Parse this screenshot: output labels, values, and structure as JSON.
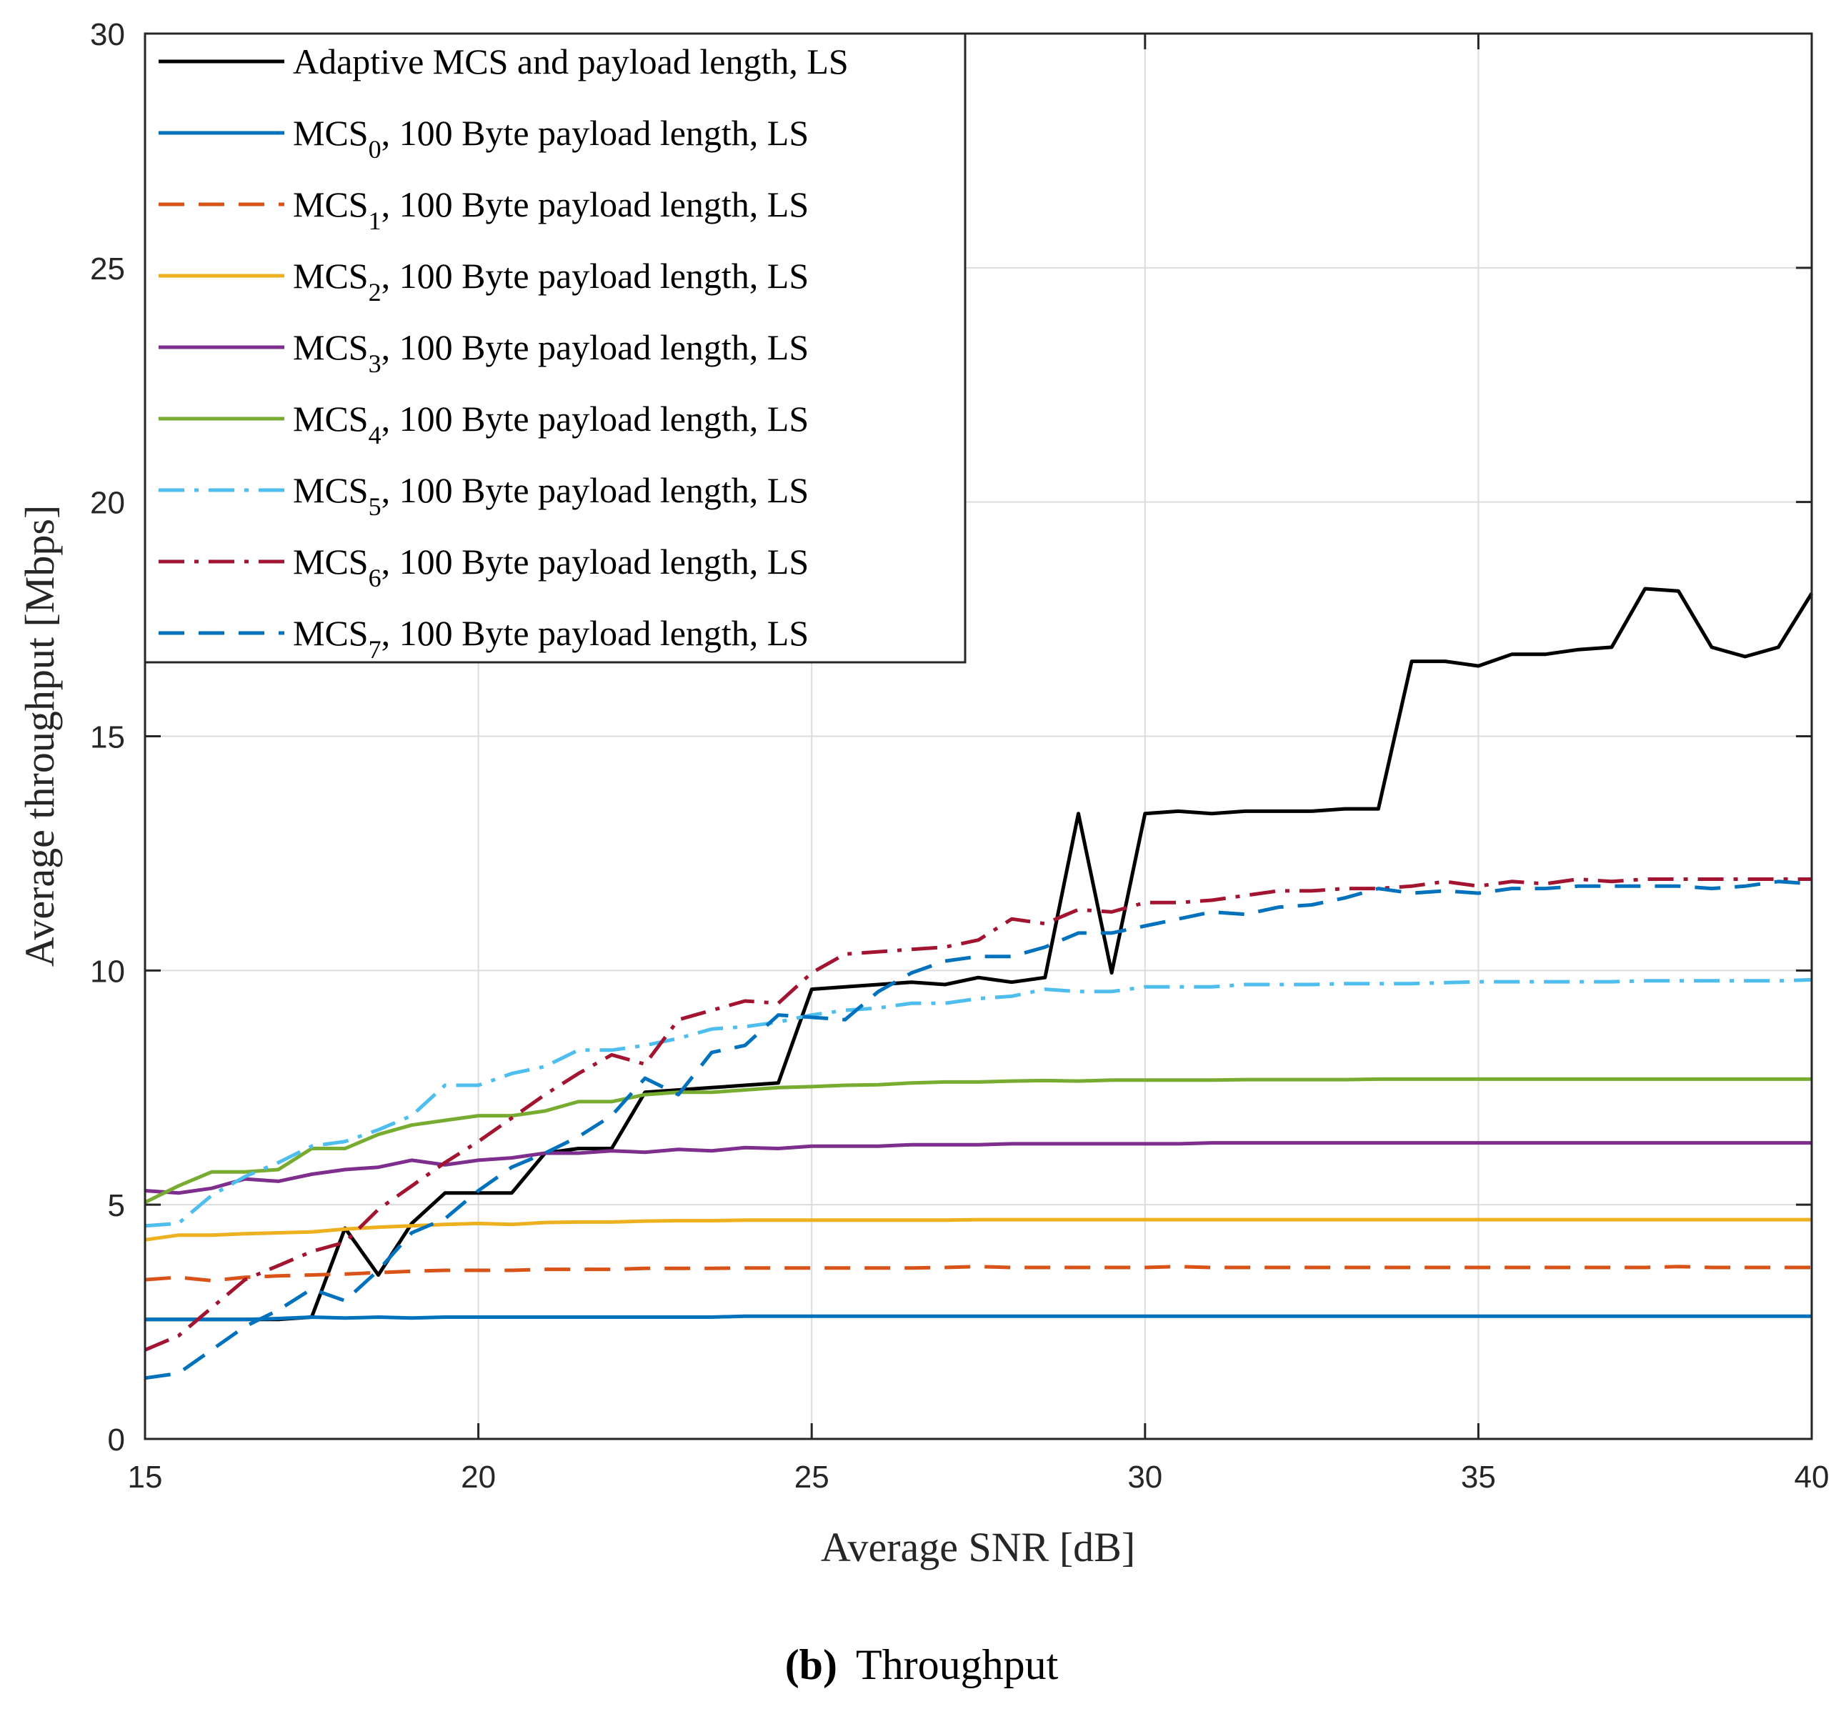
{
  "chart_data": {
    "type": "line",
    "title": "",
    "xlabel": "Average SNR [dB]",
    "ylabel": "Average throughput [Mbps]",
    "xlim": [
      15,
      40
    ],
    "ylim": [
      0,
      30
    ],
    "xticks": [
      15,
      20,
      25,
      30,
      35,
      40
    ],
    "yticks": [
      0,
      5,
      10,
      15,
      20,
      25,
      30
    ],
    "grid": true,
    "legend_position": "top-left",
    "caption": {
      "label": "(b)",
      "text": "Throughput"
    },
    "x": [
      15,
      15.5,
      16,
      16.5,
      17,
      17.5,
      18,
      18.5,
      19,
      19.5,
      20,
      20.5,
      21,
      21.5,
      22,
      22.5,
      23,
      23.5,
      24,
      24.5,
      25,
      25.5,
      26,
      26.5,
      27,
      27.5,
      28,
      28.5,
      29,
      29.5,
      30,
      30.5,
      31,
      31.5,
      32,
      32.5,
      33,
      33.5,
      34,
      34.5,
      35,
      35.5,
      36,
      36.5,
      37,
      37.5,
      38,
      38.5,
      39,
      39.5,
      40
    ],
    "series": [
      {
        "name": "Adaptive MCS and payload length, LS",
        "legend_main": "Adaptive MCS and payload length, LS",
        "legend_sub": "",
        "legend_rest": "",
        "color": "#000000",
        "dash": "solid",
        "values": [
          2.55,
          2.55,
          2.55,
          2.55,
          2.55,
          2.6,
          4.5,
          3.5,
          4.6,
          5.25,
          5.25,
          5.25,
          6.1,
          6.2,
          6.2,
          7.4,
          7.45,
          7.5,
          7.55,
          7.6,
          9.6,
          9.65,
          9.7,
          9.75,
          9.7,
          9.85,
          9.75,
          9.85,
          13.35,
          9.95,
          13.35,
          13.4,
          13.35,
          13.4,
          13.4,
          13.4,
          13.45,
          13.45,
          16.6,
          16.6,
          16.5,
          16.75,
          16.75,
          16.85,
          16.9,
          18.15,
          18.1,
          16.9,
          16.7,
          16.9,
          18.05
        ]
      },
      {
        "name": "MCS0, 100 Byte payload length, LS",
        "legend_main": "MCS",
        "legend_sub": "0",
        "legend_rest": ", 100 Byte payload length, LS",
        "color": "#0072BD",
        "dash": "solid",
        "values": [
          2.55,
          2.55,
          2.55,
          2.55,
          2.57,
          2.6,
          2.58,
          2.6,
          2.58,
          2.6,
          2.6,
          2.6,
          2.6,
          2.6,
          2.6,
          2.6,
          2.6,
          2.6,
          2.62,
          2.62,
          2.62,
          2.62,
          2.62,
          2.62,
          2.62,
          2.62,
          2.62,
          2.62,
          2.62,
          2.62,
          2.62,
          2.62,
          2.62,
          2.62,
          2.62,
          2.62,
          2.62,
          2.62,
          2.62,
          2.62,
          2.62,
          2.62,
          2.62,
          2.62,
          2.62,
          2.62,
          2.62,
          2.62,
          2.62,
          2.62,
          2.62
        ]
      },
      {
        "name": "MCS1, 100 Byte payload length, LS",
        "legend_main": "MCS",
        "legend_sub": "1",
        "legend_rest": ", 100 Byte payload length, LS",
        "color": "#D95319",
        "dash": "dashed",
        "values": [
          3.4,
          3.45,
          3.38,
          3.45,
          3.48,
          3.5,
          3.52,
          3.55,
          3.58,
          3.6,
          3.6,
          3.6,
          3.62,
          3.62,
          3.62,
          3.64,
          3.64,
          3.64,
          3.65,
          3.65,
          3.65,
          3.65,
          3.65,
          3.65,
          3.66,
          3.68,
          3.66,
          3.66,
          3.66,
          3.66,
          3.66,
          3.68,
          3.66,
          3.66,
          3.66,
          3.66,
          3.66,
          3.66,
          3.66,
          3.66,
          3.66,
          3.66,
          3.66,
          3.66,
          3.66,
          3.66,
          3.68,
          3.66,
          3.66,
          3.66,
          3.66
        ]
      },
      {
        "name": "MCS2, 100 Byte payload length, LS",
        "legend_main": "MCS",
        "legend_sub": "2",
        "legend_rest": ", 100 Byte payload length, LS",
        "color": "#EDB120",
        "dash": "solid",
        "values": [
          4.25,
          4.35,
          4.35,
          4.38,
          4.4,
          4.42,
          4.48,
          4.52,
          4.55,
          4.58,
          4.6,
          4.58,
          4.62,
          4.63,
          4.63,
          4.65,
          4.66,
          4.66,
          4.67,
          4.67,
          4.67,
          4.67,
          4.67,
          4.67,
          4.67,
          4.68,
          4.68,
          4.68,
          4.68,
          4.68,
          4.68,
          4.68,
          4.68,
          4.68,
          4.68,
          4.68,
          4.68,
          4.68,
          4.68,
          4.68,
          4.68,
          4.68,
          4.68,
          4.68,
          4.68,
          4.68,
          4.68,
          4.68,
          4.68,
          4.68,
          4.68
        ]
      },
      {
        "name": "MCS3, 100 Byte payload length, LS",
        "legend_main": "MCS",
        "legend_sub": "3",
        "legend_rest": ", 100 Byte payload length, LS",
        "color": "#7E2F8E",
        "dash": "solid",
        "values": [
          5.3,
          5.25,
          5.35,
          5.55,
          5.5,
          5.65,
          5.75,
          5.8,
          5.95,
          5.85,
          5.95,
          6.0,
          6.1,
          6.1,
          6.15,
          6.12,
          6.18,
          6.15,
          6.22,
          6.2,
          6.25,
          6.25,
          6.25,
          6.28,
          6.28,
          6.28,
          6.3,
          6.3,
          6.3,
          6.3,
          6.3,
          6.3,
          6.32,
          6.32,
          6.32,
          6.32,
          6.32,
          6.32,
          6.32,
          6.32,
          6.32,
          6.32,
          6.32,
          6.32,
          6.32,
          6.32,
          6.32,
          6.32,
          6.32,
          6.32,
          6.32
        ]
      },
      {
        "name": "MCS4, 100 Byte payload length, LS",
        "legend_main": "MCS",
        "legend_sub": "4",
        "legend_rest": ", 100 Byte payload length, LS",
        "color": "#77AC30",
        "dash": "solid",
        "values": [
          5.05,
          5.4,
          5.7,
          5.7,
          5.75,
          6.2,
          6.2,
          6.5,
          6.7,
          6.8,
          6.9,
          6.9,
          7.0,
          7.2,
          7.2,
          7.35,
          7.4,
          7.4,
          7.45,
          7.5,
          7.52,
          7.55,
          7.56,
          7.6,
          7.62,
          7.62,
          7.64,
          7.65,
          7.64,
          7.66,
          7.66,
          7.66,
          7.66,
          7.67,
          7.67,
          7.67,
          7.67,
          7.68,
          7.68,
          7.68,
          7.68,
          7.68,
          7.68,
          7.68,
          7.68,
          7.68,
          7.68,
          7.68,
          7.68,
          7.68,
          7.68
        ]
      },
      {
        "name": "MCS5, 100 Byte payload length, LS",
        "legend_main": "MCS",
        "legend_sub": "5",
        "legend_rest": ", 100 Byte payload length, LS",
        "color": "#4DBEEE",
        "dash": "dashdot",
        "values": [
          4.55,
          4.6,
          5.2,
          5.6,
          5.9,
          6.25,
          6.35,
          6.6,
          6.9,
          7.55,
          7.55,
          7.8,
          7.95,
          8.3,
          8.3,
          8.4,
          8.55,
          8.75,
          8.8,
          8.9,
          9.05,
          9.15,
          9.2,
          9.3,
          9.3,
          9.4,
          9.45,
          9.6,
          9.55,
          9.55,
          9.65,
          9.65,
          9.65,
          9.7,
          9.7,
          9.7,
          9.72,
          9.72,
          9.72,
          9.74,
          9.76,
          9.76,
          9.76,
          9.76,
          9.76,
          9.78,
          9.78,
          9.78,
          9.78,
          9.78,
          9.8
        ]
      },
      {
        "name": "MCS6, 100 Byte payload length, LS",
        "legend_main": "MCS",
        "legend_sub": "6",
        "legend_rest": ", 100 Byte payload length, LS",
        "color": "#A2142F",
        "dash": "dashdot",
        "values": [
          1.9,
          2.2,
          2.8,
          3.4,
          3.7,
          4.0,
          4.2,
          4.9,
          5.4,
          5.9,
          6.35,
          6.85,
          7.35,
          7.8,
          8.2,
          8.0,
          8.95,
          9.15,
          9.35,
          9.3,
          9.95,
          10.35,
          10.4,
          10.45,
          10.5,
          10.65,
          11.1,
          11.0,
          11.3,
          11.25,
          11.45,
          11.45,
          11.5,
          11.6,
          11.7,
          11.7,
          11.75,
          11.75,
          11.8,
          11.9,
          11.8,
          11.9,
          11.85,
          11.95,
          11.9,
          11.95,
          11.95,
          11.95,
          11.95,
          11.95,
          11.95
        ]
      },
      {
        "name": "MCS7, 100 Byte payload length, LS",
        "legend_main": "MCS",
        "legend_sub": "7",
        "legend_rest": ", 100 Byte payload length, LS",
        "color": "#0072BD",
        "dash": "dashed",
        "values": [
          1.3,
          1.4,
          1.9,
          2.4,
          2.75,
          3.2,
          2.95,
          3.6,
          4.4,
          4.7,
          5.3,
          5.8,
          6.1,
          6.45,
          6.9,
          7.7,
          7.35,
          8.25,
          8.4,
          9.05,
          9.0,
          8.95,
          9.55,
          9.95,
          10.2,
          10.3,
          10.3,
          10.5,
          10.8,
          10.8,
          10.95,
          11.1,
          11.25,
          11.2,
          11.35,
          11.4,
          11.55,
          11.75,
          11.65,
          11.7,
          11.65,
          11.75,
          11.75,
          11.8,
          11.8,
          11.8,
          11.8,
          11.75,
          11.8,
          11.9,
          11.85
        ]
      }
    ]
  }
}
